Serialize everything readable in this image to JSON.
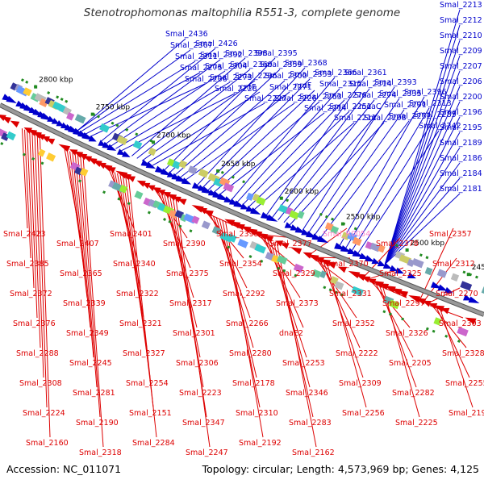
{
  "title": "Stenotrophomonas maltophilia R551-3, complete genome",
  "accession_text": "Accession: NC_011071",
  "topology_text": "Topology: circular; Length: 4,573,969 bp; Genes: 4,125",
  "colors": {
    "forward": "#0000cc",
    "reverse": "#dd0000",
    "rna": "#ff88cc",
    "backbone": "#999999",
    "tick_marker": "#228b22"
  },
  "kbp_ticks": [
    "2800 kbp",
    "2750 kbp",
    "2700 kbp",
    "2650 kbp",
    "2600 kbp",
    "2550 kbp",
    "2500 kbp",
    "2450 kbp"
  ],
  "forward_labels": [
    "Smal_2436",
    "Smal_2426",
    "Smal_2398",
    "Smal_2395",
    "Smal_2368",
    "Smal_2366",
    "Smal_2361",
    "Smal_2393",
    "Smal_2396",
    "Smal_2367",
    "Smal_2392",
    "Smal_2360",
    "Smal_2359",
    "Smal_2353",
    "Smal_2315",
    "Smal_2314",
    "Smal_2335",
    "Smal_2313",
    "Smal_2311",
    "Smal_2304",
    "Smal_2296",
    "Smal_2300",
    "nrdF",
    "Smal_2276",
    "Smal_2274",
    "Smal_2291",
    "Smal_2285",
    "Smal_2275",
    "Smal_2273",
    "cntF",
    "Smal_2271",
    "Smal_2263",
    "Smal_2251",
    "moaC",
    "Smal_2252",
    "Smal_2242",
    "Smal_2236",
    "Smal_2228",
    "Smal_2227",
    "Smal_2226",
    "Smal_2214",
    "Smal_2211",
    "Smal_2208",
    "Smal_2213",
    "Smal_2212",
    "Smal_2210",
    "Smal_2209",
    "Smal_2207",
    "Smal_2206",
    "Smal_2200",
    "Smal_2196",
    "Smal_2195",
    "Smal_2189",
    "Smal_2186",
    "Smal_2184",
    "Smal_2181"
  ],
  "reverse_labels": [
    "Smal_2423",
    "Smal_2407",
    "Smal_2401",
    "Smal_2390",
    "Smal_2399",
    "Smal_2377",
    "Smal_R0054",
    "Smal_2378",
    "Smal_2357",
    "Smal_2385",
    "Smal_2365",
    "Smal_2340",
    "Smal_2375",
    "Smal_2354",
    "Smal_2329",
    "Smal_2370",
    "Smal_2325",
    "Smal_2312",
    "Smal_2372",
    "Smal_2339",
    "Smal_2322",
    "Smal_2317",
    "Smal_2292",
    "Smal_2373",
    "Smal_2331",
    "Smal_2297",
    "Smal_2270",
    "Smal_2376",
    "Smal_2349",
    "Smal_2321",
    "Smal_2301",
    "Smal_2266",
    "dnaE2",
    "Smal_2352",
    "Smal_2326",
    "Smal_2303",
    "Smal_2288",
    "Smal_2245",
    "Smal_2327",
    "Smal_2306",
    "Smal_2280",
    "Smal_2253",
    "Smal_2222",
    "Smal_2205",
    "Smal_2328",
    "Smal_2308",
    "Smal_2281",
    "Smal_2254",
    "Smal_2223",
    "Smal_2178",
    "Smal_2346",
    "Smal_2309",
    "Smal_2282",
    "Smal_2255",
    "Smal_2224",
    "Smal_2190",
    "Smal_2151",
    "Smal_2347",
    "Smal_2310",
    "Smal_2283",
    "Smal_2256",
    "Smal_2225",
    "Smal_2191",
    "Smal_2160",
    "Smal_2318",
    "Smal_2284",
    "Smal_2247",
    "Smal_2192",
    "Smal_2162"
  ]
}
